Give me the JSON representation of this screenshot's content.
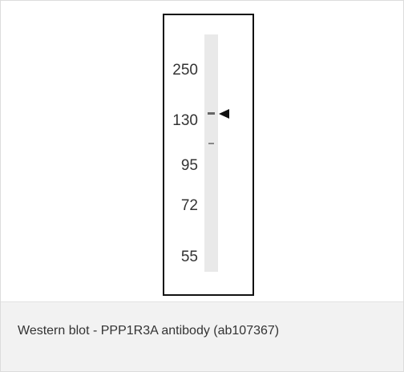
{
  "blot": {
    "markers": [
      "250",
      "130",
      "95",
      "72",
      "55"
    ]
  },
  "caption": "Western blot - PPP1R3A antibody (ab107367)"
}
